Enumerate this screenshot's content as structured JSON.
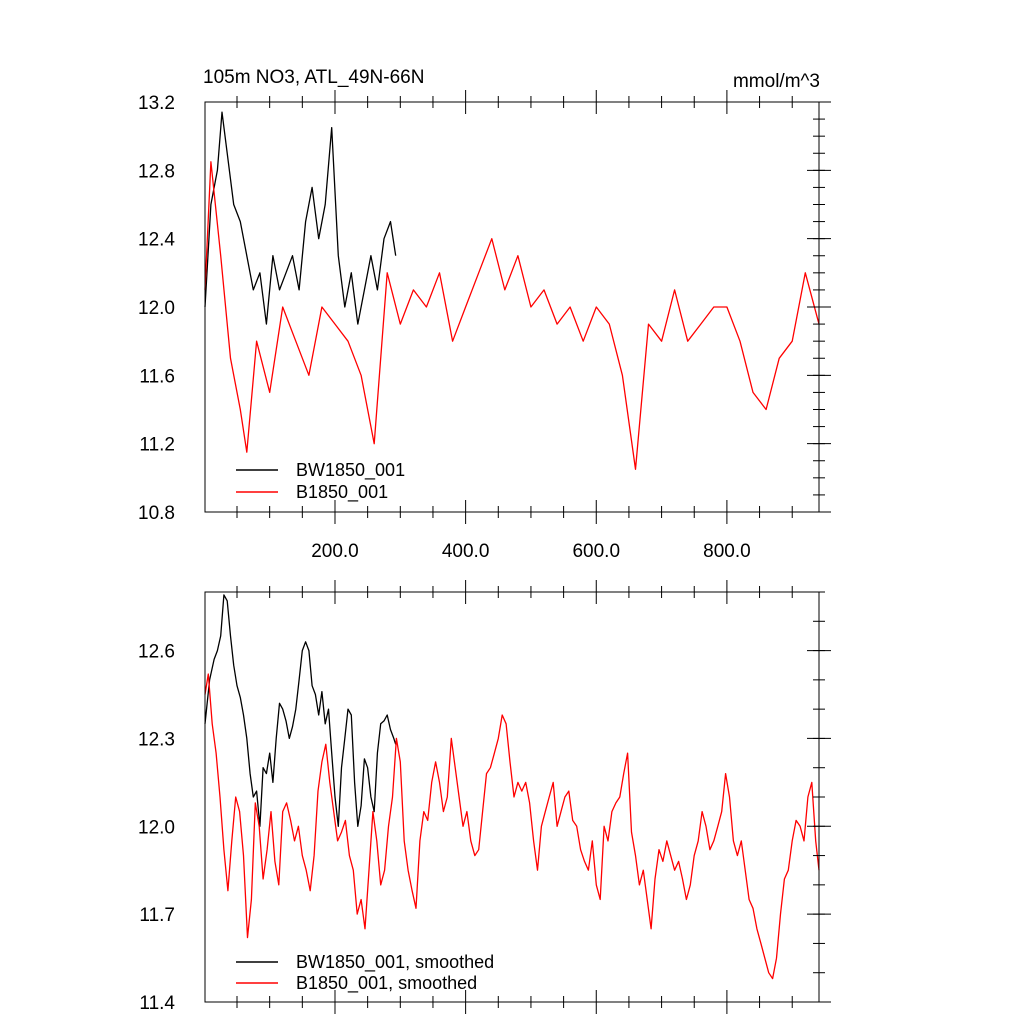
{
  "chart_data": [
    {
      "type": "line",
      "title": "105m NO3, ATL_49N-66N",
      "units": "mmol/m^3",
      "xlim": [
        1,
        941
      ],
      "ylim": [
        10.8,
        13.2
      ],
      "x_ticks": [
        200,
        400,
        600,
        800
      ],
      "x_tick_labels": [
        "200.0",
        "400.0",
        "600.0",
        "800.0"
      ],
      "y_ticks": [
        10.8,
        11.2,
        11.6,
        12.0,
        12.4,
        12.8,
        13.2
      ],
      "y_tick_labels": [
        "10.8",
        "11.2",
        "11.6",
        "12.0",
        "12.4",
        "12.8",
        "13.2"
      ],
      "legend_position": "bottom-left",
      "grid": false,
      "series": [
        {
          "name": "BW1850_001",
          "color": "#000000",
          "x": [
            1,
            10,
            20,
            27,
            35,
            45,
            55,
            65,
            75,
            85,
            95,
            105,
            115,
            125,
            135,
            145,
            155,
            165,
            175,
            185,
            195,
            205,
            215,
            225,
            235,
            245,
            255,
            265,
            275,
            285,
            293
          ],
          "values": [
            12.0,
            12.6,
            12.8,
            13.14,
            12.9,
            12.6,
            12.5,
            12.3,
            12.1,
            12.2,
            11.9,
            12.3,
            12.1,
            12.2,
            12.3,
            12.1,
            12.5,
            12.7,
            12.4,
            12.6,
            13.05,
            12.3,
            12.0,
            12.2,
            11.9,
            12.1,
            12.3,
            12.1,
            12.4,
            12.5,
            12.3
          ]
        },
        {
          "name": "B1850_001",
          "color": "#ff0000",
          "x": [
            1,
            10,
            25,
            40,
            55,
            65,
            80,
            100,
            120,
            140,
            160,
            180,
            200,
            220,
            240,
            260,
            280,
            300,
            320,
            340,
            360,
            380,
            400,
            420,
            440,
            460,
            480,
            500,
            520,
            540,
            560,
            580,
            600,
            620,
            640,
            660,
            680,
            700,
            720,
            740,
            760,
            780,
            800,
            820,
            840,
            860,
            880,
            900,
            920,
            941
          ],
          "values": [
            12.1,
            12.85,
            12.3,
            11.7,
            11.4,
            11.15,
            11.8,
            11.5,
            12.0,
            11.8,
            11.6,
            12.0,
            11.9,
            11.8,
            11.6,
            11.2,
            12.2,
            11.9,
            12.1,
            12.0,
            12.2,
            11.8,
            12.0,
            12.2,
            12.4,
            12.1,
            12.3,
            12.0,
            12.1,
            11.9,
            12.0,
            11.8,
            12.0,
            11.9,
            11.6,
            11.05,
            11.9,
            11.8,
            12.1,
            11.8,
            11.9,
            12.0,
            12.0,
            11.8,
            11.5,
            11.4,
            11.7,
            11.8,
            12.2,
            11.9
          ]
        }
      ]
    },
    {
      "type": "line",
      "xlim": [
        1,
        941
      ],
      "ylim": [
        11.4,
        12.8
      ],
      "y_ticks": [
        11.4,
        11.7,
        12.0,
        12.3,
        12.6
      ],
      "y_tick_labels": [
        "11.4",
        "11.7",
        "12.0",
        "12.3",
        "12.6"
      ],
      "legend_position": "bottom-left",
      "grid": false,
      "series": [
        {
          "name": "BW1850_001, smoothed",
          "color": "#000000",
          "x": [
            1,
            8,
            15,
            20,
            25,
            30,
            35,
            40,
            45,
            50,
            55,
            60,
            65,
            70,
            75,
            80,
            85,
            90,
            95,
            100,
            105,
            110,
            115,
            120,
            125,
            130,
            135,
            140,
            145,
            150,
            155,
            160,
            165,
            170,
            175,
            180,
            185,
            190,
            195,
            200,
            205,
            210,
            215,
            220,
            225,
            230,
            235,
            240,
            245,
            250,
            255,
            260,
            265,
            270,
            275,
            280,
            285,
            290,
            293
          ],
          "values": [
            12.35,
            12.5,
            12.57,
            12.6,
            12.65,
            12.79,
            12.77,
            12.65,
            12.55,
            12.48,
            12.44,
            12.38,
            12.3,
            12.18,
            12.1,
            12.12,
            12.0,
            12.2,
            12.18,
            12.25,
            12.15,
            12.3,
            12.42,
            12.4,
            12.36,
            12.3,
            12.34,
            12.4,
            12.5,
            12.6,
            12.63,
            12.6,
            12.48,
            12.45,
            12.38,
            12.46,
            12.35,
            12.4,
            12.25,
            12.1,
            12.0,
            12.2,
            12.3,
            12.4,
            12.38,
            12.15,
            12.0,
            12.07,
            12.23,
            12.2,
            12.1,
            12.05,
            12.25,
            12.35,
            12.36,
            12.38,
            12.33,
            12.3,
            12.28
          ]
        },
        {
          "name": "B1850_001, smoothed",
          "color": "#ff0000",
          "x": [
            1,
            6,
            12,
            18,
            24,
            30,
            36,
            42,
            48,
            54,
            60,
            66,
            72,
            78,
            84,
            90,
            96,
            102,
            108,
            114,
            120,
            126,
            132,
            138,
            144,
            150,
            156,
            162,
            168,
            174,
            180,
            186,
            192,
            198,
            204,
            210,
            216,
            222,
            228,
            234,
            240,
            246,
            252,
            258,
            264,
            270,
            276,
            282,
            288,
            294,
            300,
            306,
            312,
            318,
            324,
            330,
            336,
            342,
            348,
            354,
            360,
            366,
            372,
            378,
            384,
            390,
            396,
            402,
            408,
            414,
            420,
            426,
            432,
            438,
            444,
            450,
            456,
            462,
            468,
            474,
            480,
            486,
            492,
            498,
            504,
            510,
            516,
            522,
            528,
            534,
            540,
            546,
            552,
            558,
            564,
            570,
            576,
            582,
            588,
            594,
            600,
            606,
            612,
            618,
            624,
            630,
            636,
            642,
            648,
            654,
            660,
            666,
            672,
            678,
            684,
            690,
            696,
            702,
            708,
            714,
            720,
            726,
            732,
            738,
            744,
            750,
            756,
            762,
            768,
            774,
            780,
            786,
            792,
            798,
            804,
            810,
            816,
            822,
            828,
            834,
            840,
            846,
            852,
            858,
            864,
            870,
            876,
            882,
            888,
            894,
            900,
            906,
            912,
            918,
            924,
            930,
            936,
            941
          ],
          "values": [
            12.45,
            12.52,
            12.35,
            12.25,
            12.1,
            11.92,
            11.78,
            11.95,
            12.1,
            12.05,
            11.9,
            11.62,
            11.75,
            12.08,
            12.0,
            11.82,
            11.92,
            12.05,
            11.88,
            11.8,
            12.05,
            12.08,
            12.02,
            11.95,
            12.0,
            11.9,
            11.85,
            11.78,
            11.9,
            12.12,
            12.22,
            12.28,
            12.15,
            12.05,
            11.95,
            11.98,
            12.02,
            11.9,
            11.85,
            11.7,
            11.75,
            11.65,
            11.85,
            12.05,
            11.95,
            11.8,
            11.85,
            12.0,
            12.1,
            12.3,
            12.22,
            11.95,
            11.85,
            11.78,
            11.72,
            11.95,
            12.05,
            12.02,
            12.15,
            12.22,
            12.15,
            12.05,
            12.1,
            12.3,
            12.2,
            12.1,
            12.0,
            12.05,
            11.95,
            11.9,
            11.92,
            12.05,
            12.18,
            12.2,
            12.25,
            12.3,
            12.38,
            12.35,
            12.22,
            12.1,
            12.15,
            12.12,
            12.15,
            12.08,
            11.95,
            11.85,
            12.0,
            12.05,
            12.1,
            12.15,
            12.0,
            12.05,
            12.1,
            12.12,
            12.02,
            12.0,
            11.92,
            11.88,
            11.85,
            11.95,
            11.8,
            11.75,
            12.0,
            11.95,
            12.05,
            12.08,
            12.1,
            12.18,
            12.25,
            11.98,
            11.9,
            11.8,
            11.85,
            11.75,
            11.65,
            11.82,
            11.92,
            11.88,
            11.95,
            11.9,
            11.85,
            11.88,
            11.82,
            11.75,
            11.8,
            11.9,
            11.95,
            12.05,
            12.0,
            11.92,
            11.95,
            12.0,
            12.05,
            12.18,
            12.1,
            11.95,
            11.9,
            11.95,
            11.85,
            11.75,
            11.72,
            11.65,
            11.6,
            11.55,
            11.5,
            11.48,
            11.55,
            11.7,
            11.82,
            11.85,
            11.95,
            12.02,
            12.0,
            11.95,
            12.1,
            12.15,
            11.95,
            11.85
          ]
        }
      ]
    }
  ]
}
